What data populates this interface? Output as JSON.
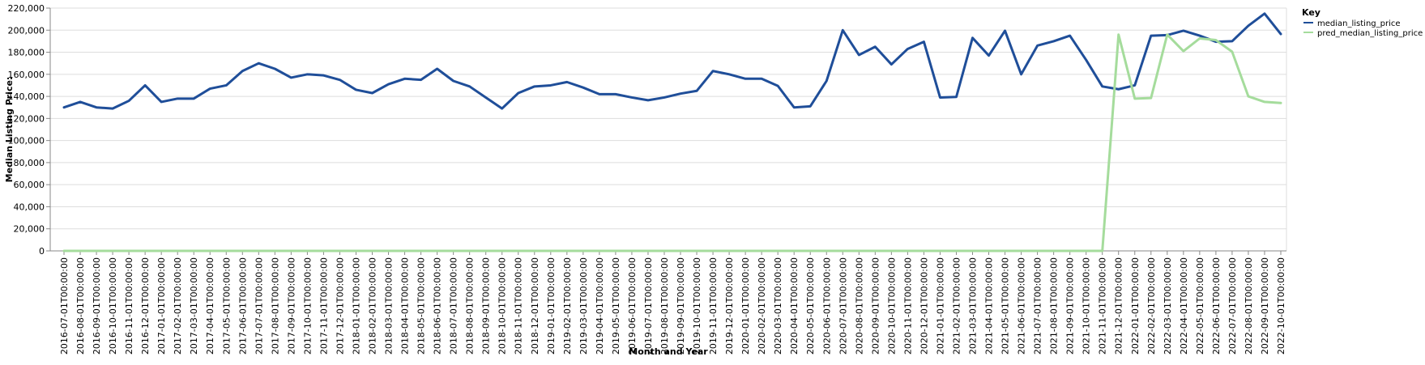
{
  "chart_data": {
    "type": "line",
    "xlabel": "Month and Year",
    "ylabel": "Median Listing Price:",
    "ylim": [
      0,
      220000
    ],
    "yticks": [
      "0",
      "20,000",
      "40,000",
      "60,000",
      "80,000",
      "100,000",
      "120,000",
      "140,000",
      "160,000",
      "180,000",
      "200,000",
      "220,000"
    ],
    "grid": true,
    "legend": {
      "title": "Key",
      "placement": "right"
    },
    "x": [
      "2016-07-01T00:00:00",
      "2016-08-01T00:00:00",
      "2016-09-01T00:00:00",
      "2016-10-01T00:00:00",
      "2016-11-01T00:00:00",
      "2016-12-01T00:00:00",
      "2017-01-01T00:00:00",
      "2017-02-01T00:00:00",
      "2017-03-01T00:00:00",
      "2017-04-01T00:00:00",
      "2017-05-01T00:00:00",
      "2017-06-01T00:00:00",
      "2017-07-01T00:00:00",
      "2017-08-01T00:00:00",
      "2017-09-01T00:00:00",
      "2017-10-01T00:00:00",
      "2017-11-01T00:00:00",
      "2017-12-01T00:00:00",
      "2018-01-01T00:00:00",
      "2018-02-01T00:00:00",
      "2018-03-01T00:00:00",
      "2018-04-01T00:00:00",
      "2018-05-01T00:00:00",
      "2018-06-01T00:00:00",
      "2018-07-01T00:00:00",
      "2018-08-01T00:00:00",
      "2018-09-01T00:00:00",
      "2018-10-01T00:00:00",
      "2018-11-01T00:00:00",
      "2018-12-01T00:00:00",
      "2019-01-01T00:00:00",
      "2019-02-01T00:00:00",
      "2019-03-01T00:00:00",
      "2019-04-01T00:00:00",
      "2019-05-01T00:00:00",
      "2019-06-01T00:00:00",
      "2019-07-01T00:00:00",
      "2019-08-01T00:00:00",
      "2019-09-01T00:00:00",
      "2019-10-01T00:00:00",
      "2019-11-01T00:00:00",
      "2019-12-01T00:00:00",
      "2020-01-01T00:00:00",
      "2020-02-01T00:00:00",
      "2020-03-01T00:00:00",
      "2020-04-01T00:00:00",
      "2020-05-01T00:00:00",
      "2020-06-01T00:00:00",
      "2020-07-01T00:00:00",
      "2020-08-01T00:00:00",
      "2020-09-01T00:00:00",
      "2020-10-01T00:00:00",
      "2020-11-01T00:00:00",
      "2020-12-01T00:00:00",
      "2021-01-01T00:00:00",
      "2021-02-01T00:00:00",
      "2021-03-01T00:00:00",
      "2021-04-01T00:00:00",
      "2021-05-01T00:00:00",
      "2021-06-01T00:00:00",
      "2021-07-01T00:00:00",
      "2021-08-01T00:00:00",
      "2021-09-01T00:00:00",
      "2021-10-01T00:00:00",
      "2021-11-01T00:00:00",
      "2021-12-01T00:00:00",
      "2022-01-01T00:00:00",
      "2022-02-01T00:00:00",
      "2022-03-01T00:00:00",
      "2022-04-01T00:00:00",
      "2022-05-01T00:00:00",
      "2022-06-01T00:00:00",
      "2022-07-01T00:00:00",
      "2022-08-01T00:00:00",
      "2022-09-01T00:00:00",
      "2022-10-01T00:00:00"
    ],
    "series": [
      {
        "name": "median_listing_price",
        "color": "#1f4e99",
        "values": [
          130000,
          135000,
          130000,
          129000,
          136000,
          150000,
          135000,
          138000,
          138000,
          147000,
          150000,
          163000,
          170000,
          165000,
          157000,
          160000,
          159000,
          155000,
          146000,
          143000,
          151000,
          156000,
          155000,
          165000,
          154000,
          149000,
          139000,
          129000,
          143000,
          149000,
          150000,
          153000,
          148000,
          142000,
          142000,
          139000,
          136500,
          139000,
          142500,
          145000,
          163000,
          160000,
          156000,
          156000,
          149500,
          130000,
          131000,
          154000,
          200000,
          177500,
          185000,
          169000,
          183000,
          189500,
          139000,
          139500,
          193000,
          177000,
          199500,
          160000,
          186000,
          190000,
          195000,
          173000,
          149000,
          146500,
          150000,
          195000,
          195500,
          199500,
          195000,
          189500,
          190000,
          204000,
          215000,
          196500
        ]
      },
      {
        "name": "pred_median_listing_price",
        "color": "#a5dc9c",
        "values": [
          0,
          0,
          0,
          0,
          0,
          0,
          0,
          0,
          0,
          0,
          0,
          0,
          0,
          0,
          0,
          0,
          0,
          0,
          0,
          0,
          0,
          0,
          0,
          0,
          0,
          0,
          0,
          0,
          0,
          0,
          0,
          0,
          0,
          0,
          0,
          0,
          0,
          0,
          0,
          0,
          0,
          0,
          0,
          0,
          0,
          0,
          0,
          0,
          0,
          0,
          0,
          0,
          0,
          0,
          0,
          0,
          0,
          0,
          0,
          0,
          0,
          0,
          0,
          0,
          0,
          196000,
          138000,
          138500,
          196000,
          181000,
          192500,
          191000,
          180500,
          140000,
          135000,
          134000
        ]
      }
    ]
  }
}
